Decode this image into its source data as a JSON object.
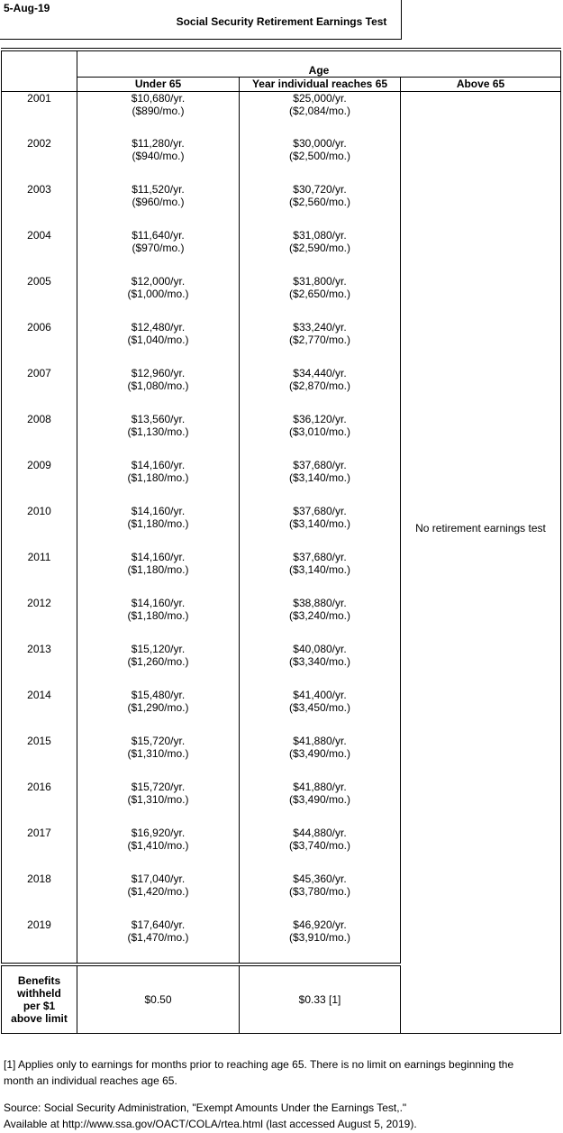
{
  "meta": {
    "date_label": "5-Aug-19",
    "title": "Social Security Retirement Earnings Test"
  },
  "table": {
    "age_header": "Age",
    "col_headers": [
      "Under 65",
      "Year individual reaches 65",
      "Above 65"
    ],
    "above65_note": "No retirement earnings test",
    "rows": [
      {
        "year": "2001",
        "under_yr": "$10,680/yr.",
        "under_mo": "($890/mo.)",
        "reach_yr": "$25,000/yr.",
        "reach_mo": "($2,084/mo.)"
      },
      {
        "year": "2002",
        "under_yr": "$11,280/yr.",
        "under_mo": "($940/mo.)",
        "reach_yr": "$30,000/yr.",
        "reach_mo": "($2,500/mo.)"
      },
      {
        "year": "2003",
        "under_yr": "$11,520/yr.",
        "under_mo": "($960/mo.)",
        "reach_yr": "$30,720/yr.",
        "reach_mo": "($2,560/mo.)"
      },
      {
        "year": "2004",
        "under_yr": "$11,640/yr.",
        "under_mo": "($970/mo.)",
        "reach_yr": "$31,080/yr.",
        "reach_mo": "($2,590/mo.)"
      },
      {
        "year": "2005",
        "under_yr": "$12,000/yr.",
        "under_mo": "($1,000/mo.)",
        "reach_yr": "$31,800/yr.",
        "reach_mo": "($2,650/mo.)"
      },
      {
        "year": "2006",
        "under_yr": "$12,480/yr.",
        "under_mo": "($1,040/mo.)",
        "reach_yr": "$33,240/yr.",
        "reach_mo": "($2,770/mo.)"
      },
      {
        "year": "2007",
        "under_yr": "$12,960/yr.",
        "under_mo": "($1,080/mo.)",
        "reach_yr": "$34,440/yr.",
        "reach_mo": "($2,870/mo.)"
      },
      {
        "year": "2008",
        "under_yr": "$13,560/yr.",
        "under_mo": "($1,130/mo.)",
        "reach_yr": "$36,120/yr.",
        "reach_mo": "($3,010/mo.)"
      },
      {
        "year": "2009",
        "under_yr": "$14,160/yr.",
        "under_mo": "($1,180/mo.)",
        "reach_yr": "$37,680/yr.",
        "reach_mo": "($3,140/mo.)"
      },
      {
        "year": "2010",
        "under_yr": "$14,160/yr.",
        "under_mo": "($1,180/mo.)",
        "reach_yr": "$37,680/yr.",
        "reach_mo": "($3,140/mo.)"
      },
      {
        "year": "2011",
        "under_yr": "$14,160/yr.",
        "under_mo": "($1,180/mo.)",
        "reach_yr": "$37,680/yr.",
        "reach_mo": "($3,140/mo.)"
      },
      {
        "year": "2012",
        "under_yr": "$14,160/yr.",
        "under_mo": "($1,180/mo.)",
        "reach_yr": "$38,880/yr.",
        "reach_mo": "($3,240/mo.)"
      },
      {
        "year": "2013",
        "under_yr": "$15,120/yr.",
        "under_mo": "($1,260/mo.)",
        "reach_yr": "$40,080/yr.",
        "reach_mo": "($3,340/mo.)"
      },
      {
        "year": "2014",
        "under_yr": "$15,480/yr.",
        "under_mo": "($1,290/mo.)",
        "reach_yr": "$41,400/yr.",
        "reach_mo": "($3,450/mo.)"
      },
      {
        "year": "2015",
        "under_yr": "$15,720/yr.",
        "under_mo": "($1,310/mo.)",
        "reach_yr": "$41,880/yr.",
        "reach_mo": "($3,490/mo.)"
      },
      {
        "year": "2016",
        "under_yr": "$15,720/yr.",
        "under_mo": "($1,310/mo.)",
        "reach_yr": "$41,880/yr.",
        "reach_mo": "($3,490/mo.)"
      },
      {
        "year": "2017",
        "under_yr": "$16,920/yr.",
        "under_mo": "($1,410/mo.)",
        "reach_yr": "$44,880/yr.",
        "reach_mo": "($3,740/mo.)"
      },
      {
        "year": "2018",
        "under_yr": "$17,040/yr.",
        "under_mo": "($1,420/mo.)",
        "reach_yr": "$45,360/yr.",
        "reach_mo": "($3,780/mo.)"
      },
      {
        "year": "2019",
        "under_yr": "$17,640/yr.",
        "under_mo": "($1,470/mo.)",
        "reach_yr": "$46,920/yr.",
        "reach_mo": "($3,910/mo.)"
      }
    ],
    "benefits_row": {
      "label_lines": [
        "Benefits",
        "withheld",
        "per $1",
        "above limit"
      ],
      "under65": "$0.50",
      "reach65": "$0.33 [1]",
      "above65": ""
    }
  },
  "footnotes": {
    "note1_lines": [
      "[1] Applies only to earnings for months prior to reaching age 65. There is no limit on earnings beginning the",
      "month an individual reaches age 65."
    ],
    "source_line1": "Source: Social Security Administration, \"Exempt Amounts Under the Earnings Test,.\"",
    "source_line2": "Available at http://www.ssa.gov/OACT/COLA/rtea.html (last accessed August 5, 2019)."
  },
  "colors": {
    "background": "#ffffff",
    "text": "#000000",
    "border": "#000000"
  }
}
